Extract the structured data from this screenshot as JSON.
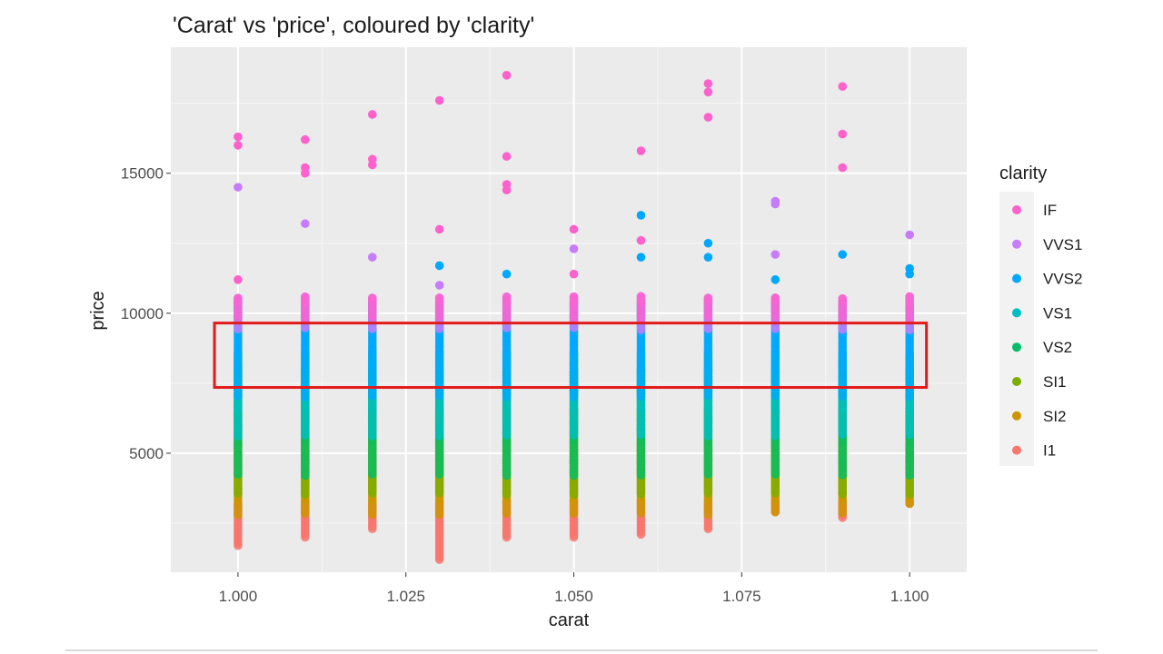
{
  "chart_data": {
    "type": "scatter",
    "title": "'Carat' vs 'price', coloured by 'clarity'",
    "xlabel": "carat",
    "ylabel": "price",
    "xlim": [
      0.99,
      1.1085
    ],
    "ylim": [
      750,
      19500
    ],
    "x_ticks": [
      "1.000",
      "1.025",
      "1.050",
      "1.075",
      "1.100"
    ],
    "x_tick_values": [
      1.0,
      1.025,
      1.05,
      1.075,
      1.1
    ],
    "y_ticks": [
      "5000",
      "10000",
      "15000"
    ],
    "y_tick_values": [
      5000,
      10000,
      15000
    ],
    "grid": true,
    "legend": {
      "title": "clarity",
      "position": "right",
      "entries": [
        "IF",
        "VVS1",
        "VVS2",
        "VS1",
        "VS2",
        "SI1",
        "SI2",
        "I1"
      ]
    },
    "colors": {
      "IF": "#ff61cc",
      "VVS1": "#c77cff",
      "VVS2": "#00a9ff",
      "VS1": "#00bfc4",
      "VS2": "#00be67",
      "SI1": "#7cae00",
      "SI2": "#cd9600",
      "I1": "#f8766d"
    },
    "columns": [
      {
        "x": 1.0,
        "min": 1700,
        "max": 16500,
        "outliers": [
          [
            14500,
            "VVS1"
          ],
          [
            16000,
            "IF"
          ],
          [
            16300,
            "IF"
          ],
          [
            11200,
            "IF"
          ]
        ]
      },
      {
        "x": 1.01,
        "min": 2000,
        "max": 16300,
        "outliers": [
          [
            16200,
            "IF"
          ],
          [
            15200,
            "IF"
          ],
          [
            15000,
            "IF"
          ],
          [
            13200,
            "VVS1"
          ]
        ]
      },
      {
        "x": 1.02,
        "min": 2300,
        "max": 17100,
        "outliers": [
          [
            17100,
            "IF"
          ],
          [
            15500,
            "IF"
          ],
          [
            15300,
            "IF"
          ],
          [
            12000,
            "VVS1"
          ]
        ]
      },
      {
        "x": 1.03,
        "min": 1200,
        "max": 17600,
        "outliers": [
          [
            17600,
            "IF"
          ],
          [
            13000,
            "IF"
          ],
          [
            11700,
            "VVS2"
          ],
          [
            11000,
            "VVS1"
          ]
        ]
      },
      {
        "x": 1.04,
        "min": 2000,
        "max": 18500,
        "outliers": [
          [
            18500,
            "IF"
          ],
          [
            15600,
            "IF"
          ],
          [
            14600,
            "IF"
          ],
          [
            14400,
            "IF"
          ],
          [
            11400,
            "VVS2"
          ]
        ]
      },
      {
        "x": 1.05,
        "min": 2000,
        "max": 13000,
        "outliers": [
          [
            13000,
            "IF"
          ],
          [
            12300,
            "VVS1"
          ],
          [
            11400,
            "IF"
          ]
        ]
      },
      {
        "x": 1.06,
        "min": 2100,
        "max": 15800,
        "outliers": [
          [
            15800,
            "IF"
          ],
          [
            13500,
            "VVS2"
          ],
          [
            12600,
            "IF"
          ],
          [
            12000,
            "VVS2"
          ]
        ]
      },
      {
        "x": 1.07,
        "min": 2300,
        "max": 18200,
        "outliers": [
          [
            18200,
            "IF"
          ],
          [
            17900,
            "IF"
          ],
          [
            17000,
            "IF"
          ],
          [
            12500,
            "VVS2"
          ],
          [
            12000,
            "VVS2"
          ]
        ]
      },
      {
        "x": 1.08,
        "min": 2900,
        "max": 14000,
        "outliers": [
          [
            14000,
            "VVS1"
          ],
          [
            13900,
            "VVS1"
          ],
          [
            12100,
            "VVS1"
          ],
          [
            11200,
            "VVS2"
          ]
        ]
      },
      {
        "x": 1.09,
        "min": 2700,
        "max": 18100,
        "outliers": [
          [
            18100,
            "IF"
          ],
          [
            16400,
            "IF"
          ],
          [
            15200,
            "IF"
          ],
          [
            12100,
            "VVS2"
          ]
        ]
      },
      {
        "x": 1.1,
        "min": 3200,
        "max": 12800,
        "outliers": [
          [
            12800,
            "VVS1"
          ],
          [
            11600,
            "VVS2"
          ],
          [
            11400,
            "VVS2"
          ]
        ]
      }
    ],
    "annotation": {
      "type": "highlight-box",
      "color": "#e31a1c",
      "x_range": [
        0.9965,
        1.1025
      ],
      "y_range": [
        7350,
        9650
      ]
    }
  }
}
